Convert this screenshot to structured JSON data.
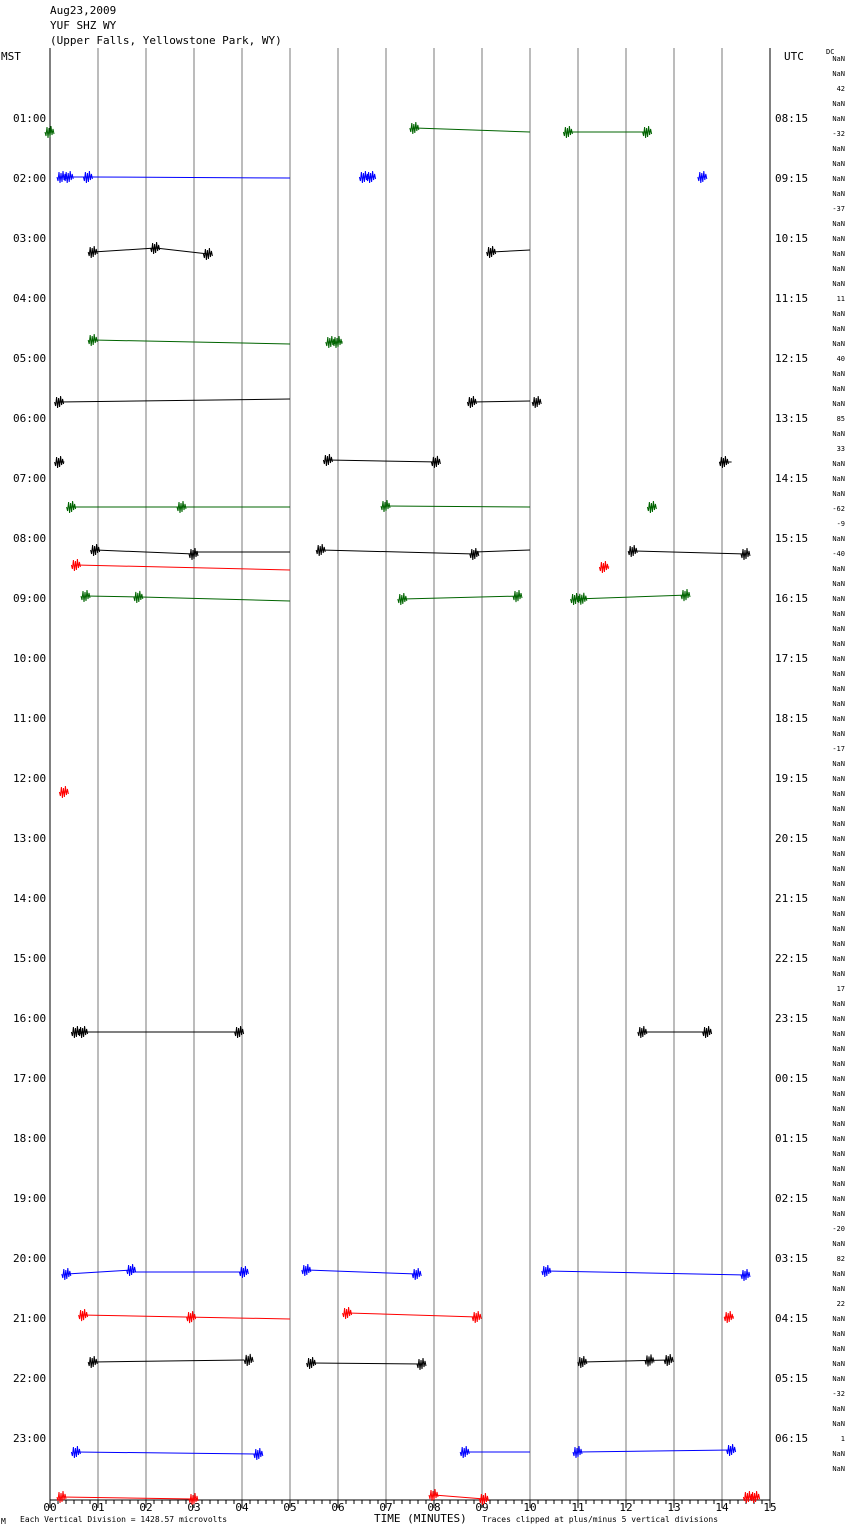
{
  "header": {
    "date": "Aug23,2009",
    "station": "YUF SHZ WY",
    "location": "(Upper Falls, Yellowstone Park, WY)"
  },
  "axes": {
    "left_label": "MST",
    "right_label": "UTC",
    "dc_label": "DC",
    "x_title": "TIME (MINUTES)",
    "footer_left": "Each Vertical Division = 1428.57 microvolts",
    "footer_right": "Traces clipped at plus/minus 5 vertical divisions",
    "corner_mark": "M"
  },
  "colors": {
    "grid": "#7a7a7a",
    "black": "#000000",
    "red": "#ff0000",
    "blue": "#0000ff",
    "green": "#006400"
  },
  "chart_data": {
    "type": "line",
    "title": "YUF SHZ WY",
    "xlabel": "TIME (MINUTES)",
    "xlim": [
      0,
      15
    ],
    "x_ticks": [
      "00",
      "01",
      "02",
      "03",
      "04",
      "05",
      "06",
      "07",
      "08",
      "09",
      "10",
      "11",
      "12",
      "13",
      "14",
      "15"
    ],
    "mst_labels": [
      "01:00",
      "02:00",
      "03:00",
      "04:00",
      "05:00",
      "06:00",
      "07:00",
      "08:00",
      "09:00",
      "10:00",
      "11:00",
      "12:00",
      "13:00",
      "14:00",
      "15:00",
      "16:00",
      "17:00",
      "18:00",
      "19:00",
      "20:00",
      "21:00",
      "22:00",
      "23:00"
    ],
    "utc_labels": [
      "08:15",
      "09:15",
      "10:15",
      "11:15",
      "12:15",
      "13:15",
      "14:15",
      "15:15",
      "16:15",
      "17:15",
      "18:15",
      "19:15",
      "20:15",
      "21:15",
      "22:15",
      "23:15",
      "00:15",
      "01:15",
      "02:15",
      "03:15",
      "04:15",
      "05:15",
      "06:15"
    ],
    "dc_values": [
      "NaN",
      "NaN",
      "42",
      "NaN",
      "NaN",
      "-32",
      "NaN",
      "NaN",
      "NaN",
      "NaN",
      "-37",
      "NaN",
      "NaN",
      "NaN",
      "NaN",
      "NaN",
      "11",
      "NaN",
      "NaN",
      "NaN",
      "40",
      "NaN",
      "NaN",
      "NaN",
      "85",
      "NaN",
      "33",
      "NaN",
      "NaN",
      "NaN",
      "-62",
      "-9",
      "NaN",
      "-40",
      "NaN",
      "NaN",
      "NaN",
      "NaN",
      "NaN",
      "NaN",
      "NaN",
      "NaN",
      "NaN",
      "NaN",
      "NaN",
      "NaN",
      "-17",
      "NaN",
      "NaN",
      "NaN",
      "NaN",
      "NaN",
      "NaN",
      "NaN",
      "NaN",
      "NaN",
      "NaN",
      "NaN",
      "NaN",
      "NaN",
      "NaN",
      "NaN",
      "17",
      "NaN",
      "NaN",
      "NaN",
      "NaN",
      "NaN",
      "NaN",
      "NaN",
      "NaN",
      "NaN",
      "NaN",
      "NaN",
      "NaN",
      "NaN",
      "NaN",
      "NaN",
      "-20",
      "NaN",
      "82",
      "NaN",
      "NaN",
      "22",
      "NaN",
      "NaN",
      "NaN",
      "NaN",
      "NaN",
      "-32",
      "NaN",
      "NaN",
      "1",
      "NaN",
      "NaN"
    ],
    "traces": [
      {
        "row": 2,
        "color": "green",
        "segments": [
          {
            "t0": 0.0,
            "t1": 0.03,
            "y0": 0,
            "y1": 0,
            "bursts": [
              0.0
            ]
          },
          {
            "t0": 7.6,
            "t1": 10.0,
            "y0": -4,
            "y1": 0,
            "bursts": [
              7.6
            ]
          },
          {
            "t0": 10.8,
            "t1": 12.45,
            "y0": 0,
            "y1": 0,
            "bursts": [
              10.8,
              12.45
            ]
          }
        ]
      },
      {
        "row": 5,
        "color": "blue",
        "segments": [
          {
            "t0": 0.2,
            "t1": 0.85,
            "y0": 0,
            "y1": 0,
            "bursts": [
              0.25,
              0.4,
              0.8
            ]
          },
          {
            "t0": 0.85,
            "t1": 5.0,
            "y0": 0,
            "y1": 1,
            "bursts": []
          },
          {
            "t0": 6.55,
            "t1": 6.75,
            "y0": 0,
            "y1": 0,
            "bursts": [
              6.55,
              6.7
            ]
          },
          {
            "t0": 13.55,
            "t1": 13.65,
            "y0": 0,
            "y1": 0,
            "bursts": [
              13.6
            ]
          }
        ]
      },
      {
        "row": 10,
        "color": "black",
        "segments": [
          {
            "t0": 0.9,
            "t1": 2.2,
            "y0": 0,
            "y1": -4,
            "bursts": [
              0.9
            ]
          },
          {
            "t0": 2.2,
            "t1": 3.3,
            "y0": -4,
            "y1": 2,
            "bursts": [
              2.2,
              3.3
            ]
          },
          {
            "t0": 9.2,
            "t1": 10.0,
            "y0": 0,
            "y1": -2,
            "bursts": [
              9.2
            ]
          }
        ]
      },
      {
        "row": 16,
        "color": "green",
        "segments": [
          {
            "t0": 0.9,
            "t1": 5.0,
            "y0": -2,
            "y1": 2,
            "bursts": [
              0.9
            ]
          },
          {
            "t0": 5.8,
            "t1": 6.1,
            "y0": 0,
            "y1": 0,
            "bursts": [
              5.85,
              6.0
            ]
          }
        ]
      },
      {
        "row": 20,
        "color": "black",
        "segments": [
          {
            "t0": 0.2,
            "t1": 5.0,
            "y0": 0,
            "y1": -3,
            "bursts": [
              0.2
            ]
          },
          {
            "t0": 8.8,
            "t1": 10.0,
            "y0": 0,
            "y1": -1,
            "bursts": [
              8.8
            ]
          },
          {
            "t0": 10.15,
            "t1": 10.2,
            "y0": 0,
            "y1": 0,
            "bursts": [
              10.15
            ]
          }
        ]
      },
      {
        "row": 24,
        "color": "black",
        "segments": [
          {
            "t0": 0.15,
            "t1": 0.3,
            "y0": 0,
            "y1": 0,
            "bursts": [
              0.2
            ]
          },
          {
            "t0": 5.8,
            "t1": 8.1,
            "y0": -2,
            "y1": 0,
            "bursts": [
              5.8,
              8.05
            ]
          },
          {
            "t0": 13.95,
            "t1": 14.2,
            "y0": 0,
            "y1": 0,
            "bursts": [
              14.05
            ]
          }
        ]
      },
      {
        "row": 27,
        "color": "green",
        "segments": [
          {
            "t0": 0.45,
            "t1": 5.0,
            "y0": 0,
            "y1": 0,
            "bursts": [
              0.45,
              2.75
            ]
          },
          {
            "t0": 7.0,
            "t1": 10.0,
            "y0": -1,
            "y1": 0,
            "bursts": [
              7.0
            ]
          },
          {
            "t0": 12.5,
            "t1": 12.6,
            "y0": 0,
            "y1": 0,
            "bursts": [
              12.55
            ]
          }
        ]
      },
      {
        "row": 30,
        "color": "black",
        "segments": [
          {
            "t0": 0.95,
            "t1": 3.0,
            "y0": -2,
            "y1": 2,
            "bursts": [
              0.95,
              3.0
            ]
          },
          {
            "t0": 3.0,
            "t1": 5.0,
            "y0": 0,
            "y1": 0,
            "bursts": []
          },
          {
            "t0": 5.65,
            "t1": 8.85,
            "y0": -2,
            "y1": 2,
            "bursts": [
              5.65,
              8.85
            ]
          },
          {
            "t0": 8.85,
            "t1": 10.0,
            "y0": 0,
            "y1": -2,
            "bursts": []
          },
          {
            "t0": 12.15,
            "t1": 14.5,
            "y0": -1,
            "y1": 2,
            "bursts": [
              12.15,
              14.5
            ]
          }
        ]
      },
      {
        "row": 31,
        "color": "red",
        "segments": [
          {
            "t0": 0.55,
            "t1": 5.0,
            "y0": -2,
            "y1": 3,
            "bursts": [
              0.55
            ]
          },
          {
            "t0": 11.5,
            "t1": 11.65,
            "y0": 0,
            "y1": 0,
            "bursts": [
              11.55
            ]
          }
        ]
      },
      {
        "row": 33,
        "color": "green",
        "segments": [
          {
            "t0": 0.75,
            "t1": 1.9,
            "y0": -1,
            "y1": 0,
            "bursts": [
              0.75,
              1.85
            ]
          },
          {
            "t0": 1.9,
            "t1": 5.0,
            "y0": 0,
            "y1": 4,
            "bursts": []
          },
          {
            "t0": 7.35,
            "t1": 9.8,
            "y0": 2,
            "y1": -1,
            "bursts": [
              7.35,
              9.75
            ]
          },
          {
            "t0": 10.95,
            "t1": 13.3,
            "y0": 2,
            "y1": -2,
            "bursts": [
              10.95,
              11.1,
              13.25
            ]
          }
        ]
      },
      {
        "row": 46,
        "color": "red",
        "segments": [
          {
            "t0": 0.25,
            "t1": 0.35,
            "y0": 0,
            "y1": 0,
            "bursts": [
              0.3
            ]
          }
        ]
      },
      {
        "row": 62,
        "color": "black",
        "segments": [
          {
            "t0": 0.55,
            "t1": 4.0,
            "y0": 0,
            "y1": 0,
            "bursts": [
              0.55,
              0.7,
              3.95
            ]
          },
          {
            "t0": 12.35,
            "t1": 13.7,
            "y0": 0,
            "y1": 0,
            "bursts": [
              12.35,
              13.7
            ]
          }
        ]
      },
      {
        "row": 78,
        "color": "blue",
        "segments": [
          {
            "t0": 0.35,
            "t1": 1.7,
            "y0": 2,
            "y1": -2,
            "bursts": [
              0.35,
              1.7
            ]
          },
          {
            "t0": 1.7,
            "t1": 4.05,
            "y0": 0,
            "y1": 0,
            "bursts": [
              4.05
            ]
          },
          {
            "t0": 5.35,
            "t1": 7.65,
            "y0": -2,
            "y1": 2,
            "bursts": [
              5.35,
              7.65
            ]
          },
          {
            "t0": 10.35,
            "t1": 14.5,
            "y0": -1,
            "y1": 3,
            "bursts": [
              10.35,
              14.5
            ]
          }
        ]
      },
      {
        "row": 81,
        "color": "red",
        "segments": [
          {
            "t0": 0.65,
            "t1": 5.0,
            "y0": -2,
            "y1": 2,
            "bursts": [
              0.7,
              2.95
            ]
          },
          {
            "t0": 6.2,
            "t1": 8.9,
            "y0": -4,
            "y1": 0,
            "bursts": [
              6.2,
              8.9
            ]
          },
          {
            "t0": 14.05,
            "t1": 14.25,
            "y0": 0,
            "y1": 0,
            "bursts": [
              14.15
            ]
          }
        ]
      },
      {
        "row": 84,
        "color": "black",
        "segments": [
          {
            "t0": 0.9,
            "t1": 4.05,
            "y0": 0,
            "y1": -2,
            "bursts": [
              0.9,
              4.15
            ]
          },
          {
            "t0": 5.45,
            "t1": 7.75,
            "y0": 1,
            "y1": 2,
            "bursts": [
              5.45,
              7.75
            ]
          },
          {
            "t0": 11.1,
            "t1": 12.9,
            "y0": 0,
            "y1": -2,
            "bursts": [
              11.1,
              12.5,
              12.9
            ]
          }
        ]
      },
      {
        "row": 90,
        "color": "blue",
        "segments": [
          {
            "t0": 0.55,
            "t1": 4.35,
            "y0": 0,
            "y1": 2,
            "bursts": [
              0.55,
              4.35
            ]
          },
          {
            "t0": 8.65,
            "t1": 10.0,
            "y0": 0,
            "y1": 0,
            "bursts": [
              8.65
            ]
          },
          {
            "t0": 11.0,
            "t1": 14.2,
            "y0": 0,
            "y1": -2,
            "bursts": [
              11.0,
              14.2
            ]
          }
        ]
      },
      {
        "row": 93,
        "color": "red",
        "segments": [
          {
            "t0": 0.25,
            "t1": 3.0,
            "y0": 0,
            "y1": 2,
            "bursts": [
              0.25,
              3.0
            ]
          },
          {
            "t0": 8.0,
            "t1": 9.05,
            "y0": -2,
            "y1": 2,
            "bursts": [
              8.0,
              9.05
            ]
          },
          {
            "t0": 14.5,
            "t1": 14.75,
            "y0": 0,
            "y1": 0,
            "bursts": [
              14.55,
              14.7
            ]
          }
        ]
      }
    ]
  }
}
